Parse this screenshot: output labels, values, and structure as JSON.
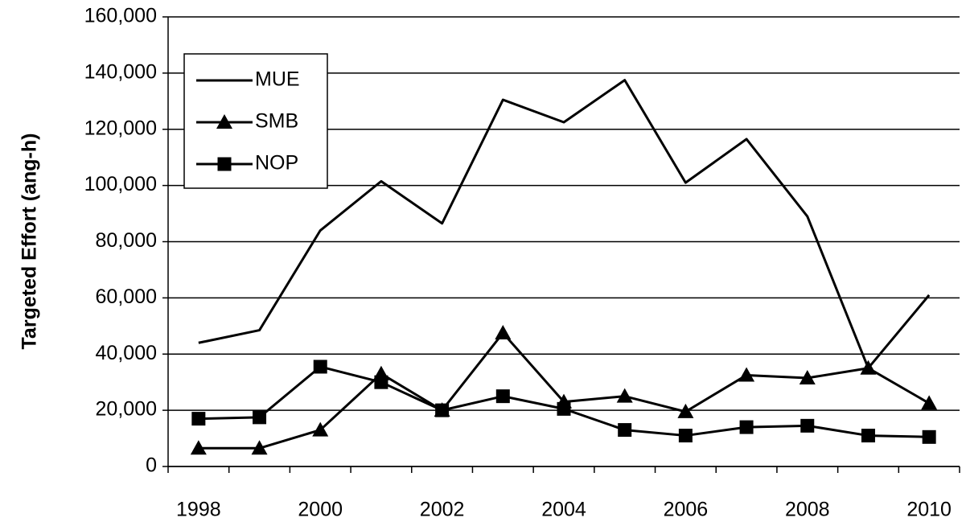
{
  "chart_data": {
    "type": "line",
    "y_label": "Targeted Effort (ang-h)",
    "categories": [
      "1998",
      null,
      "2000",
      null,
      "2002",
      null,
      "2004",
      null,
      "2006",
      null,
      "2008",
      null,
      "2010"
    ],
    "series": [
      {
        "name": "MUE",
        "color": "#000000",
        "marker": "none",
        "values": [
          44000,
          48500,
          84000,
          101500,
          86500,
          130500,
          122500,
          137500,
          101000,
          116500,
          89000,
          35000,
          61000
        ]
      },
      {
        "name": "SMB",
        "color": "#000000",
        "marker": "triangle",
        "values": [
          6500,
          6500,
          13000,
          33000,
          20000,
          47500,
          23000,
          25000,
          19500,
          32500,
          31500,
          35000,
          22500
        ]
      },
      {
        "name": "NOP",
        "color": "#000000",
        "marker": "square",
        "values": [
          17000,
          17500,
          35500,
          30000,
          20000,
          25000,
          20500,
          13000,
          11000,
          14000,
          14500,
          11000,
          10500
        ]
      }
    ],
    "ylim": [
      0,
      160000
    ],
    "yticks": [
      0,
      {
        "value": 20000,
        "label": "20,000"
      },
      {
        "value": 40000,
        "label": "40,000"
      },
      {
        "value": 60000,
        "label": "60,000"
      },
      {
        "value": 80000,
        "label": "80,000"
      },
      {
        "value": 100000,
        "label": "100,000"
      },
      {
        "value": 120000,
        "label": "120,000"
      },
      {
        "value": 140000,
        "label": "140,000"
      },
      {
        "value": 160000,
        "label": "160,000"
      }
    ],
    "grid": true,
    "legend": "upper-left"
  }
}
